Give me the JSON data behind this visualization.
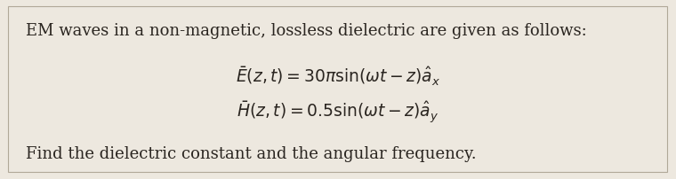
{
  "bg_color": "#ede8df",
  "text_color": "#2a2520",
  "line1": "EM waves in a non-magnetic, lossless dielectric are given as follows:",
  "line2": "$\\bar{E}(z,t)=30\\pi\\sin(\\omega t-z)\\hat{a}_x$",
  "line3": "$\\bar{H}(z,t)=0.5\\sin(\\omega t-z)\\hat{a}_y$",
  "line4": "Find the dielectric constant and the angular frequency.",
  "font_size_main": 13.0,
  "font_size_eq": 13.5,
  "figwidth": 7.6,
  "figheight": 2.03,
  "dpi": 100
}
